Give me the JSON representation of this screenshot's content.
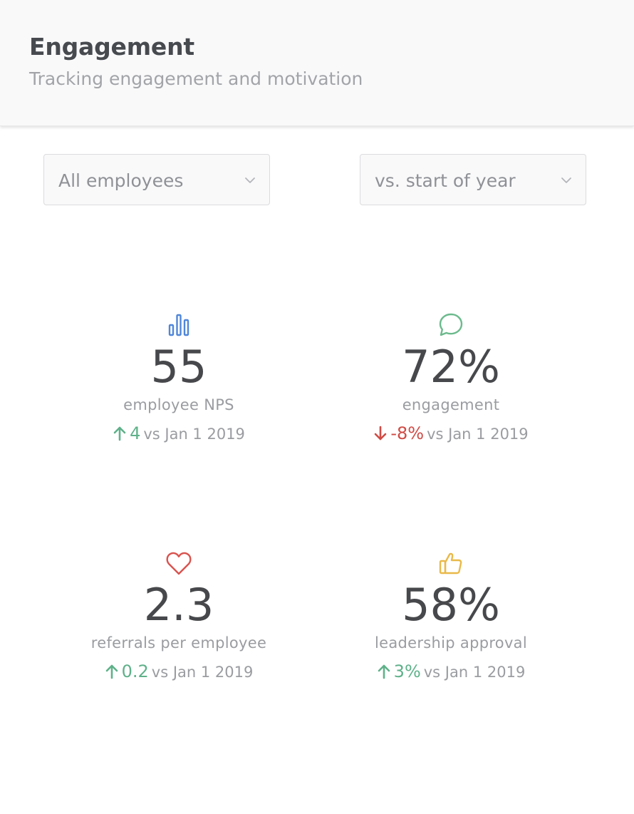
{
  "header": {
    "title": "Engagement",
    "subtitle": "Tracking engagement and motivation"
  },
  "filters": {
    "group": {
      "selected": "All employees"
    },
    "comparison": {
      "selected": "vs. start of year"
    }
  },
  "colors": {
    "positive": "#5fb18a",
    "negative": "#cf4b45",
    "nps_icon": "#4f86d9",
    "engagement_icon": "#6cba8c",
    "referrals_icon": "#d9534f",
    "approval_icon": "#e9b949"
  },
  "metrics": [
    {
      "icon": "bar-chart-icon",
      "value": "55",
      "label": "employee NPS",
      "direction": "up",
      "delta": "4",
      "comparison": "vs Jan 1 2019"
    },
    {
      "icon": "chat-bubble-icon",
      "value": "72%",
      "label": "engagement",
      "direction": "down",
      "delta": "-8%",
      "comparison": "vs Jan 1 2019"
    },
    {
      "icon": "heart-icon",
      "value": "2.3",
      "label": "referrals per employee",
      "direction": "up",
      "delta": "0.2",
      "comparison": "vs Jan 1 2019"
    },
    {
      "icon": "thumbs-up-icon",
      "value": "58%",
      "label": "leadership approval",
      "direction": "up",
      "delta": "3%",
      "comparison": "vs Jan 1 2019"
    }
  ]
}
